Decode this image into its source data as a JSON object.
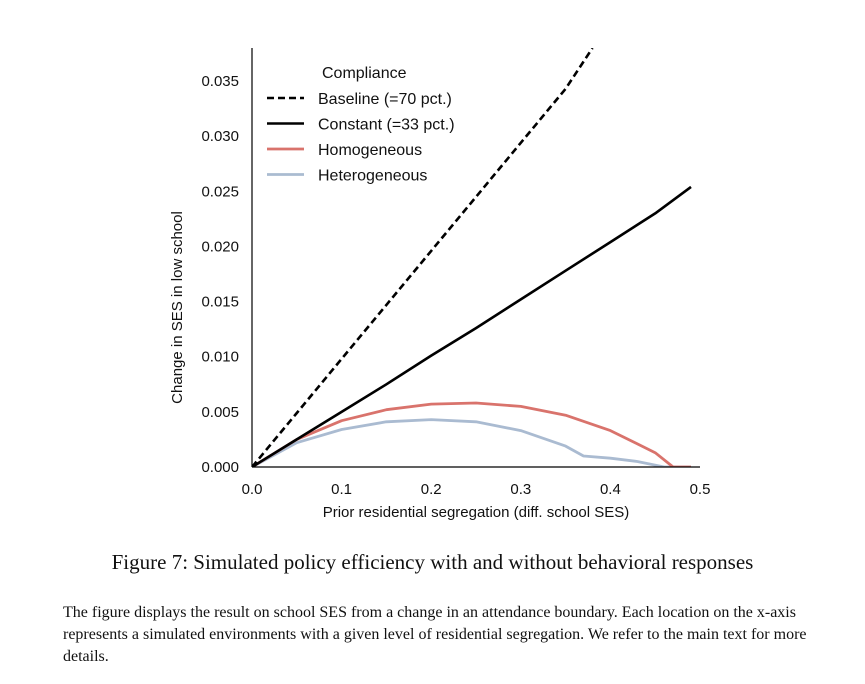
{
  "chart_data": {
    "type": "line",
    "xlabel": "Prior residential segregation (diff. school SES)",
    "ylabel": "Change in SES in low school",
    "xlim": [
      0.0,
      0.5
    ],
    "ylim": [
      0.0,
      0.038
    ],
    "xticks": [
      "0.0",
      "0.1",
      "0.2",
      "0.3",
      "0.4",
      "0.5"
    ],
    "yticks": [
      "0.000",
      "0.005",
      "0.010",
      "0.015",
      "0.020",
      "0.025",
      "0.030",
      "0.035"
    ],
    "legend": {
      "title": "Compliance",
      "position": "top-left"
    },
    "series": [
      {
        "name": "Baseline (=70 pct.)",
        "style": "dashed",
        "color": "#000000",
        "x": [
          0.0,
          0.05,
          0.1,
          0.15,
          0.2,
          0.25,
          0.3,
          0.35,
          0.38
        ],
        "y": [
          0.0,
          0.0049,
          0.0098,
          0.0147,
          0.0196,
          0.0245,
          0.0294,
          0.0343,
          0.038
        ]
      },
      {
        "name": "Constant (=33 pct.)",
        "style": "solid",
        "color": "#000000",
        "x": [
          0.0,
          0.05,
          0.1,
          0.15,
          0.2,
          0.25,
          0.3,
          0.35,
          0.4,
          0.45,
          0.49
        ],
        "y": [
          0.0,
          0.0025,
          0.005,
          0.0075,
          0.0101,
          0.0126,
          0.0152,
          0.0178,
          0.0204,
          0.023,
          0.0254
        ]
      },
      {
        "name": "Homogeneous",
        "style": "solid",
        "color": "#d9736c",
        "x": [
          0.0,
          0.05,
          0.1,
          0.15,
          0.2,
          0.25,
          0.3,
          0.35,
          0.4,
          0.45,
          0.47,
          0.49
        ],
        "y": [
          0.0,
          0.0025,
          0.0042,
          0.0052,
          0.0057,
          0.0058,
          0.0055,
          0.0047,
          0.0033,
          0.0013,
          0.0,
          0.0
        ]
      },
      {
        "name": "Heterogeneous",
        "style": "solid",
        "color": "#aabbd1",
        "x": [
          0.0,
          0.05,
          0.1,
          0.15,
          0.2,
          0.25,
          0.3,
          0.35,
          0.37,
          0.4,
          0.43,
          0.46,
          0.49
        ],
        "y": [
          0.0,
          0.0022,
          0.0034,
          0.0041,
          0.0043,
          0.0041,
          0.0033,
          0.0019,
          0.001,
          0.0008,
          0.0005,
          0.0,
          0.0
        ]
      }
    ]
  },
  "figure": {
    "caption": "Figure 7: Simulated policy efficiency with and without behavioral responses",
    "note": "The figure displays the result on school SES from a change in an attendance boundary. Each location on the x-axis represents a simulated environments with a given level of residential segregation. We refer to the main text for more details."
  }
}
